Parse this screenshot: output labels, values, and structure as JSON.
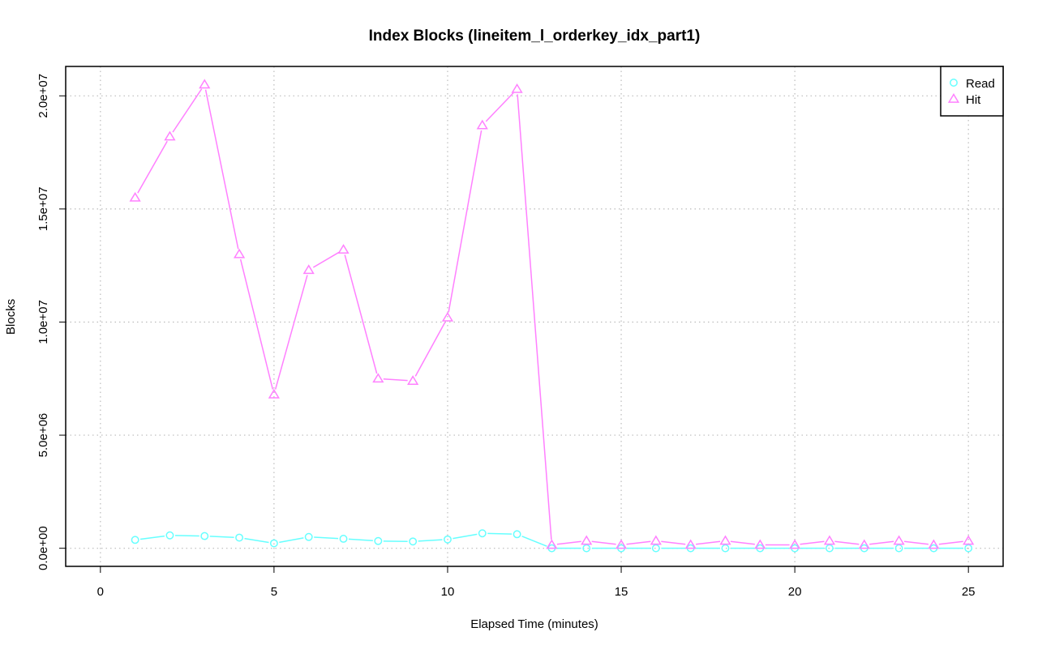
{
  "chart_data": {
    "type": "line",
    "title": "Index Blocks (lineitem_l_orderkey_idx_part1)",
    "xlabel": "Elapsed Time (minutes)",
    "ylabel": "Blocks",
    "xlim": [
      -1,
      26
    ],
    "ylim": [
      -800000,
      21300000
    ],
    "x_ticks": [
      0,
      5,
      10,
      15,
      20,
      25
    ],
    "x_tick_labels": [
      "0",
      "5",
      "10",
      "15",
      "20",
      "25"
    ],
    "y_ticks": [
      0,
      5000000,
      10000000,
      15000000,
      20000000
    ],
    "y_tick_labels": [
      "0.0e+00",
      "5.0e+06",
      "1.0e+07",
      "1.5e+07",
      "2.0e+07"
    ],
    "grid": true,
    "legend_position": "top-right",
    "x": [
      1,
      2,
      3,
      4,
      5,
      6,
      7,
      8,
      9,
      10,
      11,
      12,
      13,
      14,
      15,
      16,
      17,
      18,
      19,
      20,
      21,
      22,
      23,
      24,
      25
    ],
    "series": [
      {
        "name": "Read",
        "color": "#66ffff",
        "marker": "circle",
        "values": [
          370000,
          570000,
          540000,
          470000,
          220000,
          500000,
          420000,
          320000,
          300000,
          390000,
          660000,
          620000,
          0,
          0,
          0,
          0,
          0,
          0,
          0,
          0,
          0,
          0,
          0,
          0,
          0
        ]
      },
      {
        "name": "Hit",
        "color": "#ff80ff",
        "marker": "triangle",
        "values": [
          15500000,
          18200000,
          20500000,
          13000000,
          6800000,
          12300000,
          13200000,
          7500000,
          7400000,
          10200000,
          18700000,
          20300000,
          150000,
          330000,
          150000,
          330000,
          150000,
          330000,
          150000,
          150000,
          330000,
          150000,
          330000,
          150000,
          330000
        ]
      }
    ]
  }
}
